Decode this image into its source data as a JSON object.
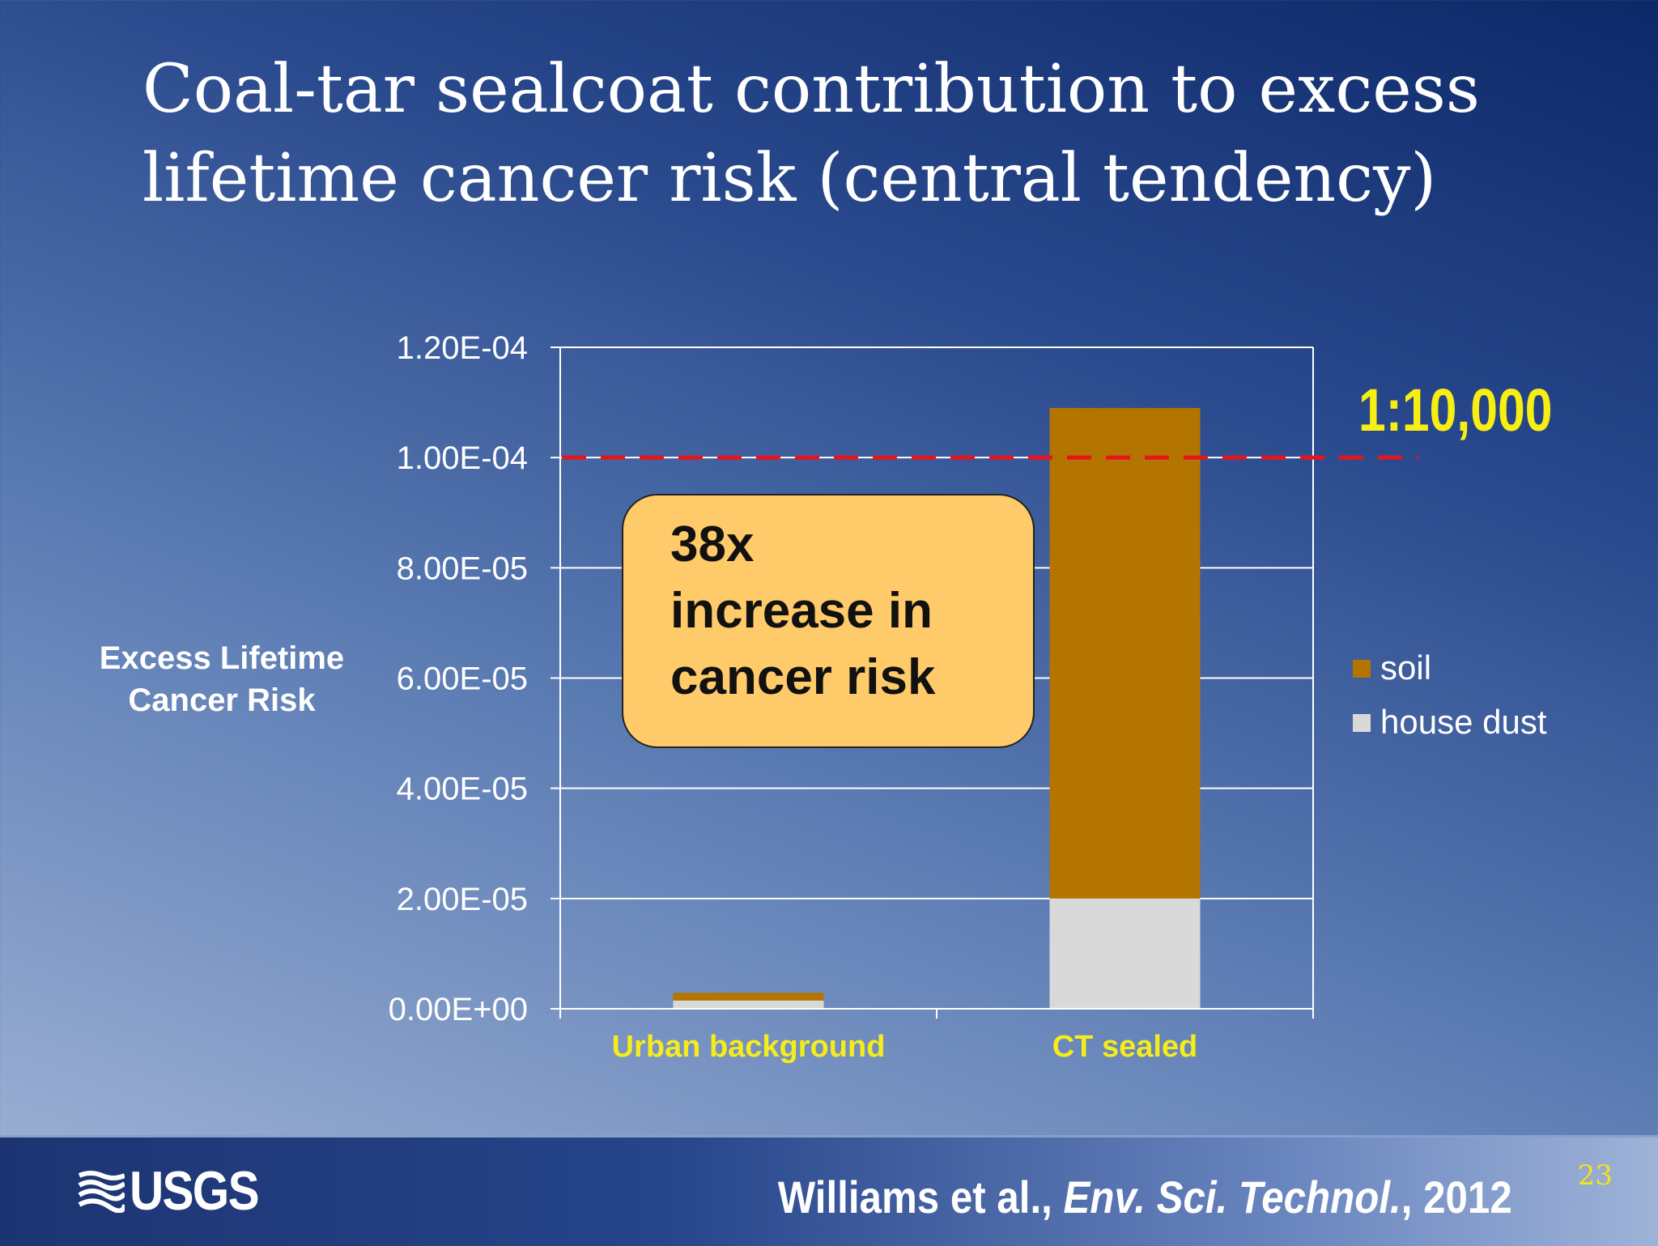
{
  "slide": {
    "title_line1": "Coal-tar sealcoat contribution to excess",
    "title_line2": "lifetime cancer risk (central tendency)",
    "callout": {
      "line1": "38x",
      "line2": "increase in",
      "line3": "cancer risk"
    },
    "threshold_label": "1:10,000",
    "citation": {
      "authors": "Williams et al., ",
      "journal": "Env. Sci. Technol.",
      "year": ", 2012"
    },
    "page_number": "23",
    "logo_text": "USGS",
    "logo_icon": "usgs-wave-icon"
  },
  "chart_data": {
    "type": "bar",
    "stacked": true,
    "categories": [
      "Urban background",
      "CT sealed"
    ],
    "series": [
      {
        "name": "house dust",
        "values": [
          1.5e-06,
          2e-05
        ],
        "color": "#d9d9d9"
      },
      {
        "name": "soil",
        "values": [
          1.4e-06,
          8.9e-05
        ],
        "color": "#b37400"
      }
    ],
    "ylabel_line1": "Excess Lifetime",
    "ylabel_line2": "Cancer Risk",
    "ylim": [
      0,
      0.00012
    ],
    "y_ticks": [
      "0.00E+00",
      "2.00E-05",
      "4.00E-05",
      "6.00E-05",
      "8.00E-05",
      "1.00E-04",
      "1.20E-04"
    ],
    "y_tick_values": [
      0,
      2e-05,
      4e-05,
      6e-05,
      8e-05,
      0.0001,
      0.00012
    ],
    "threshold": {
      "value": 0.0001,
      "color": "#e8141b"
    },
    "category_label_color": "#f5ec1c",
    "grid": true,
    "legend_position": "right"
  }
}
